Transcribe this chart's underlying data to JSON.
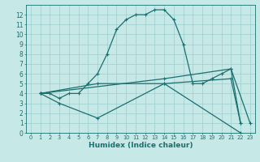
{
  "title": "",
  "xlabel": "Humidex (Indice chaleur)",
  "xlim": [
    -0.5,
    23.5
  ],
  "ylim": [
    0,
    13
  ],
  "xticks": [
    0,
    1,
    2,
    3,
    4,
    5,
    6,
    7,
    8,
    9,
    10,
    11,
    12,
    13,
    14,
    15,
    16,
    17,
    18,
    19,
    20,
    21,
    22,
    23
  ],
  "yticks": [
    0,
    1,
    2,
    3,
    4,
    5,
    6,
    7,
    8,
    9,
    10,
    11,
    12
  ],
  "bg_color": "#c6e8e6",
  "line_color": "#1a7070",
  "grid_color": "#9ecece",
  "line_width": 0.9,
  "marker": "+",
  "marker_size": 3.5,
  "marker_ew": 0.8,
  "curves": [
    {
      "x": [
        1,
        2,
        3,
        4,
        5,
        6,
        7,
        8,
        9,
        10,
        11,
        12,
        13,
        14,
        15,
        16,
        17,
        18,
        19,
        20,
        21,
        22
      ],
      "y": [
        4,
        4,
        3.5,
        4,
        4,
        5,
        6,
        8,
        10.5,
        11.5,
        12,
        12,
        12.5,
        12.5,
        11.5,
        9,
        5,
        5,
        5.5,
        6,
        6.5,
        1
      ]
    },
    {
      "x": [
        1,
        3,
        7,
        14,
        22
      ],
      "y": [
        4,
        3,
        1.5,
        5,
        0
      ]
    },
    {
      "x": [
        1,
        7,
        14,
        21,
        22
      ],
      "y": [
        4,
        5,
        5,
        5.5,
        1
      ]
    },
    {
      "x": [
        1,
        14,
        21,
        23
      ],
      "y": [
        4,
        5.5,
        6.5,
        1
      ]
    }
  ],
  "xlabel_fontsize": 6.5,
  "xlabel_fontweight": "bold",
  "tick_fontsize": 5.5,
  "spine_color": "#1a7070",
  "spine_lw": 0.6
}
